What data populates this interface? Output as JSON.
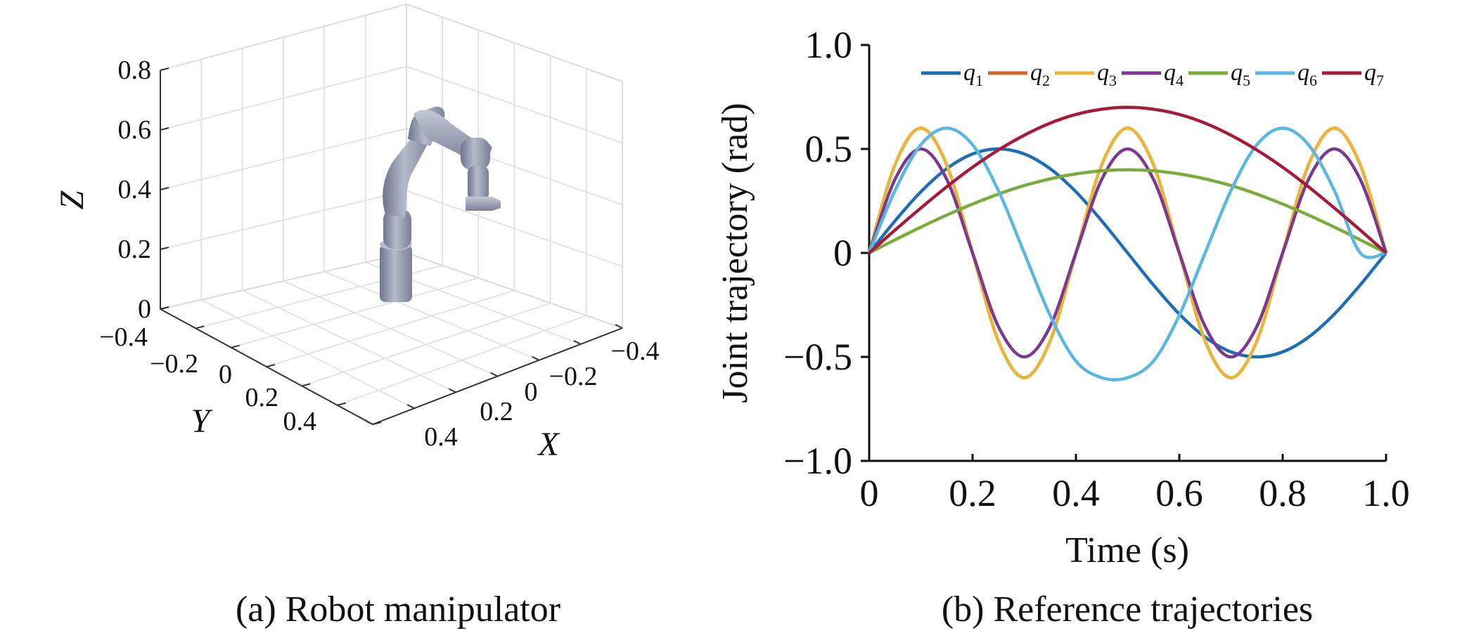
{
  "panels": {
    "a": {
      "caption": "(a) Robot manipulator",
      "axes": {
        "z_label": "Z",
        "y_label": "Y",
        "x_label": "X",
        "z_ticks": [
          "0",
          "0.2",
          "0.4",
          "0.6",
          "0.8"
        ],
        "y_ticks": [
          "−0.4",
          "−0.2",
          "0",
          "0.2",
          "0.4"
        ],
        "x_ticks": [
          "0.4",
          "0.2",
          "0",
          "−0.2",
          "−0.4"
        ]
      },
      "robot_color": "#8e93a8"
    },
    "b": {
      "caption": "(b) Reference trajectories"
    }
  },
  "chart_data": {
    "type": "line",
    "xlabel": "Time (s)",
    "ylabel": "Joint trajectory (rad)",
    "xlim": [
      0,
      1.0
    ],
    "ylim": [
      -1.0,
      1.0
    ],
    "xticks": [
      0,
      0.2,
      0.4,
      0.6,
      0.8,
      1.0
    ],
    "xtick_labels": [
      "0",
      "0.2",
      "0.4",
      "0.6",
      "0.8",
      "1.0"
    ],
    "yticks": [
      -1.0,
      -0.5,
      0,
      0.5,
      1.0
    ],
    "ytick_labels": [
      "−1.0",
      "−0.5",
      "0",
      "0.5",
      "1.0"
    ],
    "legend_position": "top",
    "x": [
      0,
      0.05,
      0.1,
      0.15,
      0.2,
      0.25,
      0.3,
      0.35,
      0.4,
      0.45,
      0.5,
      0.55,
      0.6,
      0.65,
      0.7,
      0.75,
      0.8,
      0.85,
      0.9,
      0.95,
      1.0
    ],
    "series": [
      {
        "name": "q",
        "sub": "1",
        "color": "#1f6eb5",
        "values": [
          0,
          0.154,
          0.294,
          0.405,
          0.476,
          0.5,
          0.476,
          0.405,
          0.294,
          0.154,
          0,
          -0.154,
          -0.294,
          -0.405,
          -0.476,
          -0.5,
          -0.476,
          -0.405,
          -0.294,
          -0.154,
          0
        ]
      },
      {
        "name": "q",
        "sub": "2",
        "color": "#d5632a",
        "values": [
          0,
          0.424,
          0.6,
          0.424,
          0,
          -0.424,
          -0.6,
          -0.424,
          0,
          0.424,
          0.6,
          0.424,
          0,
          -0.424,
          -0.6,
          -0.424,
          0,
          0.424,
          0.6,
          0.424,
          0
        ]
      },
      {
        "name": "q",
        "sub": "3",
        "color": "#e8b63a",
        "values": [
          0,
          0.424,
          0.6,
          0.424,
          0,
          -0.424,
          -0.6,
          -0.424,
          0,
          0.424,
          0.6,
          0.424,
          0,
          -0.424,
          -0.6,
          -0.424,
          0,
          0.424,
          0.6,
          0.424,
          0
        ]
      },
      {
        "name": "q",
        "sub": "4",
        "color": "#7b3a8e",
        "values": [
          0,
          0.354,
          0.5,
          0.354,
          0,
          -0.354,
          -0.5,
          -0.354,
          0,
          0.354,
          0.5,
          0.354,
          0,
          -0.354,
          -0.5,
          -0.354,
          0,
          0.354,
          0.5,
          0.354,
          0
        ]
      },
      {
        "name": "q",
        "sub": "5",
        "color": "#7aab3c",
        "values": [
          0,
          0.063,
          0.124,
          0.182,
          0.235,
          0.283,
          0.324,
          0.356,
          0.38,
          0.395,
          0.4,
          0.395,
          0.38,
          0.356,
          0.324,
          0.283,
          0.235,
          0.182,
          0.124,
          0.063,
          0
        ]
      },
      {
        "name": "q",
        "sub": "6",
        "color": "#5bb6e0",
        "values": [
          0,
          0.3,
          0.52,
          0.6,
          0.52,
          0.3,
          0,
          -0.3,
          -0.52,
          -0.6,
          -0.6,
          -0.52,
          -0.3,
          0,
          0.3,
          0.52,
          0.6,
          0.52,
          0.3,
          0,
          0
        ]
      },
      {
        "name": "q",
        "sub": "7",
        "color": "#a51c3a",
        "values": [
          0,
          0.11,
          0.216,
          0.318,
          0.412,
          0.495,
          0.566,
          0.624,
          0.666,
          0.691,
          0.7,
          0.691,
          0.666,
          0.624,
          0.566,
          0.495,
          0.412,
          0.318,
          0.216,
          0.11,
          0
        ]
      }
    ]
  }
}
